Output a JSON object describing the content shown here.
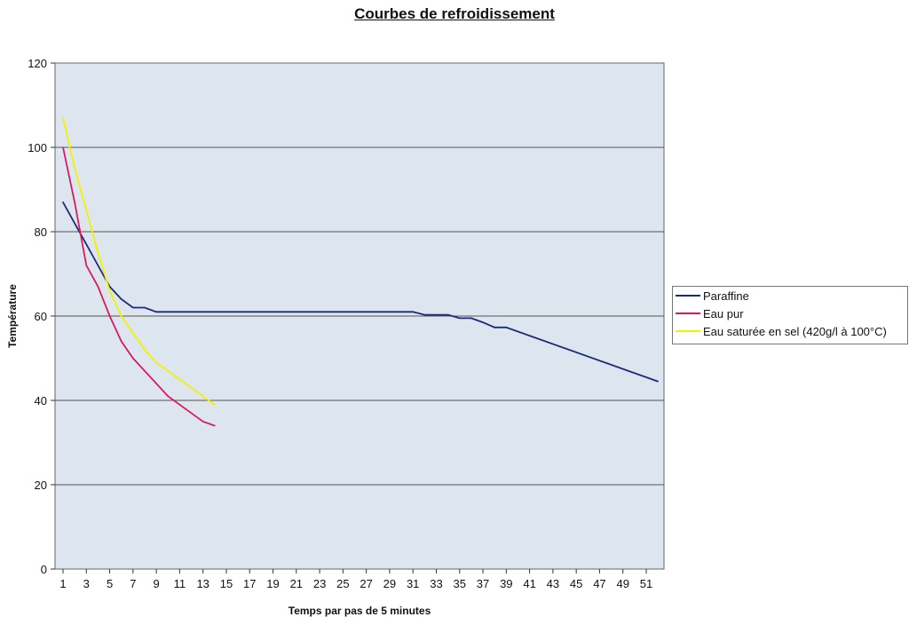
{
  "chart_data": {
    "type": "line",
    "title": "Courbes de refroidissement",
    "xlabel": "Temps par pas de 5 minutes",
    "ylabel": "Température",
    "ylim": [
      0,
      120
    ],
    "yticks": [
      "0",
      "20",
      "40",
      "60",
      "80",
      "100",
      "120"
    ],
    "xticks": [
      "1",
      "3",
      "5",
      "7",
      "9",
      "11",
      "13",
      "15",
      "17",
      "19",
      "21",
      "23",
      "25",
      "27",
      "29",
      "31",
      "33",
      "35",
      "37",
      "39",
      "41",
      "43",
      "45",
      "47",
      "49",
      "51"
    ],
    "grid": "horizontal",
    "legend_position": "right",
    "series": [
      {
        "name": "Paraffine",
        "color": "#1c2a7a",
        "x": [
          1,
          2,
          3,
          4,
          5,
          6,
          7,
          8,
          9,
          10,
          31,
          32,
          34,
          35,
          36,
          37,
          38,
          39,
          52
        ],
        "values": [
          87,
          82,
          77,
          72,
          67,
          64,
          62,
          62,
          61,
          61,
          61,
          60.3,
          60.3,
          59.5,
          59.5,
          58.5,
          57.3,
          57.3,
          44.5
        ]
      },
      {
        "name": "Eau pur",
        "color": "#d81b60",
        "x": [
          1,
          2,
          3,
          4,
          5,
          6,
          7,
          8,
          9,
          10,
          11,
          12,
          13,
          14
        ],
        "values": [
          100,
          87,
          72,
          67,
          60,
          54,
          50,
          47,
          44,
          41,
          39,
          37,
          35,
          34
        ]
      },
      {
        "name": "Eau saturée en sel (420g/l à 100°C)",
        "color": "#f2f200",
        "x": [
          1,
          2,
          3,
          4,
          5,
          6,
          7,
          8,
          9,
          10,
          11,
          12,
          13,
          14
        ],
        "values": [
          107,
          95,
          85,
          75,
          66,
          60,
          56,
          52,
          49,
          47,
          45,
          43,
          41,
          39
        ]
      }
    ]
  }
}
